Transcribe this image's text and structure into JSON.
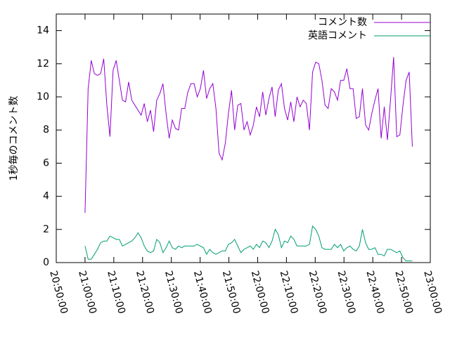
{
  "chart_data": {
    "type": "line",
    "ylabel": "1秒毎のコメント数",
    "x": [
      75600,
      75665,
      75730,
      75795,
      75860,
      75925,
      75990,
      76055,
      76120,
      76185,
      76250,
      76315,
      76380,
      76445,
      76510,
      76575,
      76640,
      76705,
      76770,
      76835,
      76900,
      76965,
      77030,
      77095,
      77160,
      77225,
      77290,
      77355,
      77420,
      77485,
      77550,
      77615,
      77680,
      77745,
      77810,
      77875,
      77940,
      78005,
      78070,
      78135,
      78200,
      78265,
      78330,
      78395,
      78460,
      78525,
      78590,
      78655,
      78720,
      78785,
      78850,
      78915,
      78980,
      79045,
      79110,
      79175,
      79240,
      79305,
      79370,
      79435,
      79500,
      79565,
      79630,
      79695,
      79760,
      79825,
      79890,
      79955,
      80020,
      80085,
      80150,
      80215,
      80280,
      80345,
      80410,
      80475,
      80540,
      80605,
      80670,
      80735,
      80800,
      80865,
      80930,
      80995,
      81060,
      81125,
      81190,
      81255,
      81320,
      81385,
      81450,
      81515,
      81580,
      81645,
      81710,
      81775,
      81840,
      81905,
      81970,
      82035,
      82100,
      82165,
      82230,
      82295,
      82360,
      82425
    ],
    "series": [
      {
        "name": "コメント数",
        "color": "#9400d3",
        "values": [
          3,
          10.5,
          12.2,
          11.4,
          11.3,
          11.4,
          12.3,
          9.5,
          7.6,
          11.6,
          12.2,
          11,
          9.8,
          9.7,
          10.9,
          9.8,
          9.5,
          9.2,
          8.9,
          9.6,
          8.5,
          9.2,
          7.9,
          9.8,
          10.2,
          10.8,
          9,
          7.5,
          8.6,
          8.1,
          8,
          9.3,
          9.3,
          10.3,
          10.8,
          10.8,
          10,
          10.5,
          11.6,
          9.9,
          10.5,
          10.8,
          9.3,
          6.6,
          6.2,
          7.2,
          9,
          10.4,
          8,
          9.5,
          9.6,
          8,
          8.5,
          7.7,
          8.3,
          9.4,
          8.8,
          10.3,
          8.9,
          9.9,
          10.6,
          8.8,
          10.4,
          10.8,
          9.3,
          8.6,
          9.7,
          8.5,
          10,
          9.4,
          9.8,
          9.6,
          8,
          11.5,
          12.1,
          12,
          11,
          9.5,
          9.3,
          10.5,
          10.3,
          9.8,
          11,
          11,
          11.7,
          10.5,
          10.5,
          8.7,
          8.8,
          10.5,
          8.3,
          8,
          9,
          9.8,
          10.5,
          7.5,
          9.4,
          7.4,
          9.8,
          12.4,
          7.6,
          7.7,
          9.5,
          11,
          11.5,
          7
        ]
      },
      {
        "name": "英語コメント",
        "color": "#009e73",
        "values": [
          1,
          0.2,
          0.2,
          0.5,
          0.8,
          1.2,
          1.3,
          1.3,
          1.6,
          1.5,
          1.4,
          1.4,
          1.0,
          1.1,
          1.2,
          1.3,
          1.5,
          1.8,
          1.5,
          1.0,
          0.7,
          0.6,
          0.7,
          1.4,
          1.2,
          0.6,
          0.9,
          1.3,
          0.9,
          0.8,
          1.0,
          0.9,
          1.0,
          1.0,
          1.0,
          1.0,
          1.1,
          1.0,
          0.9,
          0.5,
          0.8,
          0.6,
          0.5,
          0.6,
          0.7,
          0.7,
          1.1,
          1.2,
          1.4,
          1.0,
          0.6,
          0.8,
          0.9,
          1.0,
          0.8,
          1.1,
          0.9,
          1.3,
          1.2,
          0.9,
          1.3,
          2.0,
          1.7,
          0.9,
          1.3,
          1.2,
          1.6,
          1.4,
          1.0,
          1.0,
          1.0,
          1.0,
          1.1,
          2.2,
          2.0,
          1.6,
          0.9,
          0.8,
          0.8,
          0.8,
          1.1,
          0.9,
          1.1,
          0.7,
          0.9,
          1.0,
          0.8,
          0.7,
          1.0,
          2.0,
          1.2,
          0.8,
          0.8,
          0.9,
          0.5,
          0.5,
          0.4,
          0.8,
          0.8,
          0.7,
          0.6,
          0.7,
          0.3,
          0.1,
          0.1,
          0.1
        ]
      }
    ],
    "xlim": [
      75000,
      82800
    ],
    "xticks": [
      {
        "value": 75000,
        "label": "20:50:00"
      },
      {
        "value": 75600,
        "label": "21:00:00"
      },
      {
        "value": 76200,
        "label": "21:10:00"
      },
      {
        "value": 76800,
        "label": "21:20:00"
      },
      {
        "value": 77400,
        "label": "21:30:00"
      },
      {
        "value": 78000,
        "label": "21:40:00"
      },
      {
        "value": 78600,
        "label": "21:50:00"
      },
      {
        "value": 79200,
        "label": "22:00:00"
      },
      {
        "value": 79800,
        "label": "22:10:00"
      },
      {
        "value": 80400,
        "label": "22:20:00"
      },
      {
        "value": 81000,
        "label": "22:30:00"
      },
      {
        "value": 81600,
        "label": "22:40:00"
      },
      {
        "value": 82200,
        "label": "22:50:00"
      },
      {
        "value": 82800,
        "label": "23:00:00"
      }
    ],
    "ylim": [
      0,
      15
    ],
    "yticks": [
      0,
      2,
      4,
      6,
      8,
      10,
      12,
      14
    ],
    "legend": "top-right"
  }
}
